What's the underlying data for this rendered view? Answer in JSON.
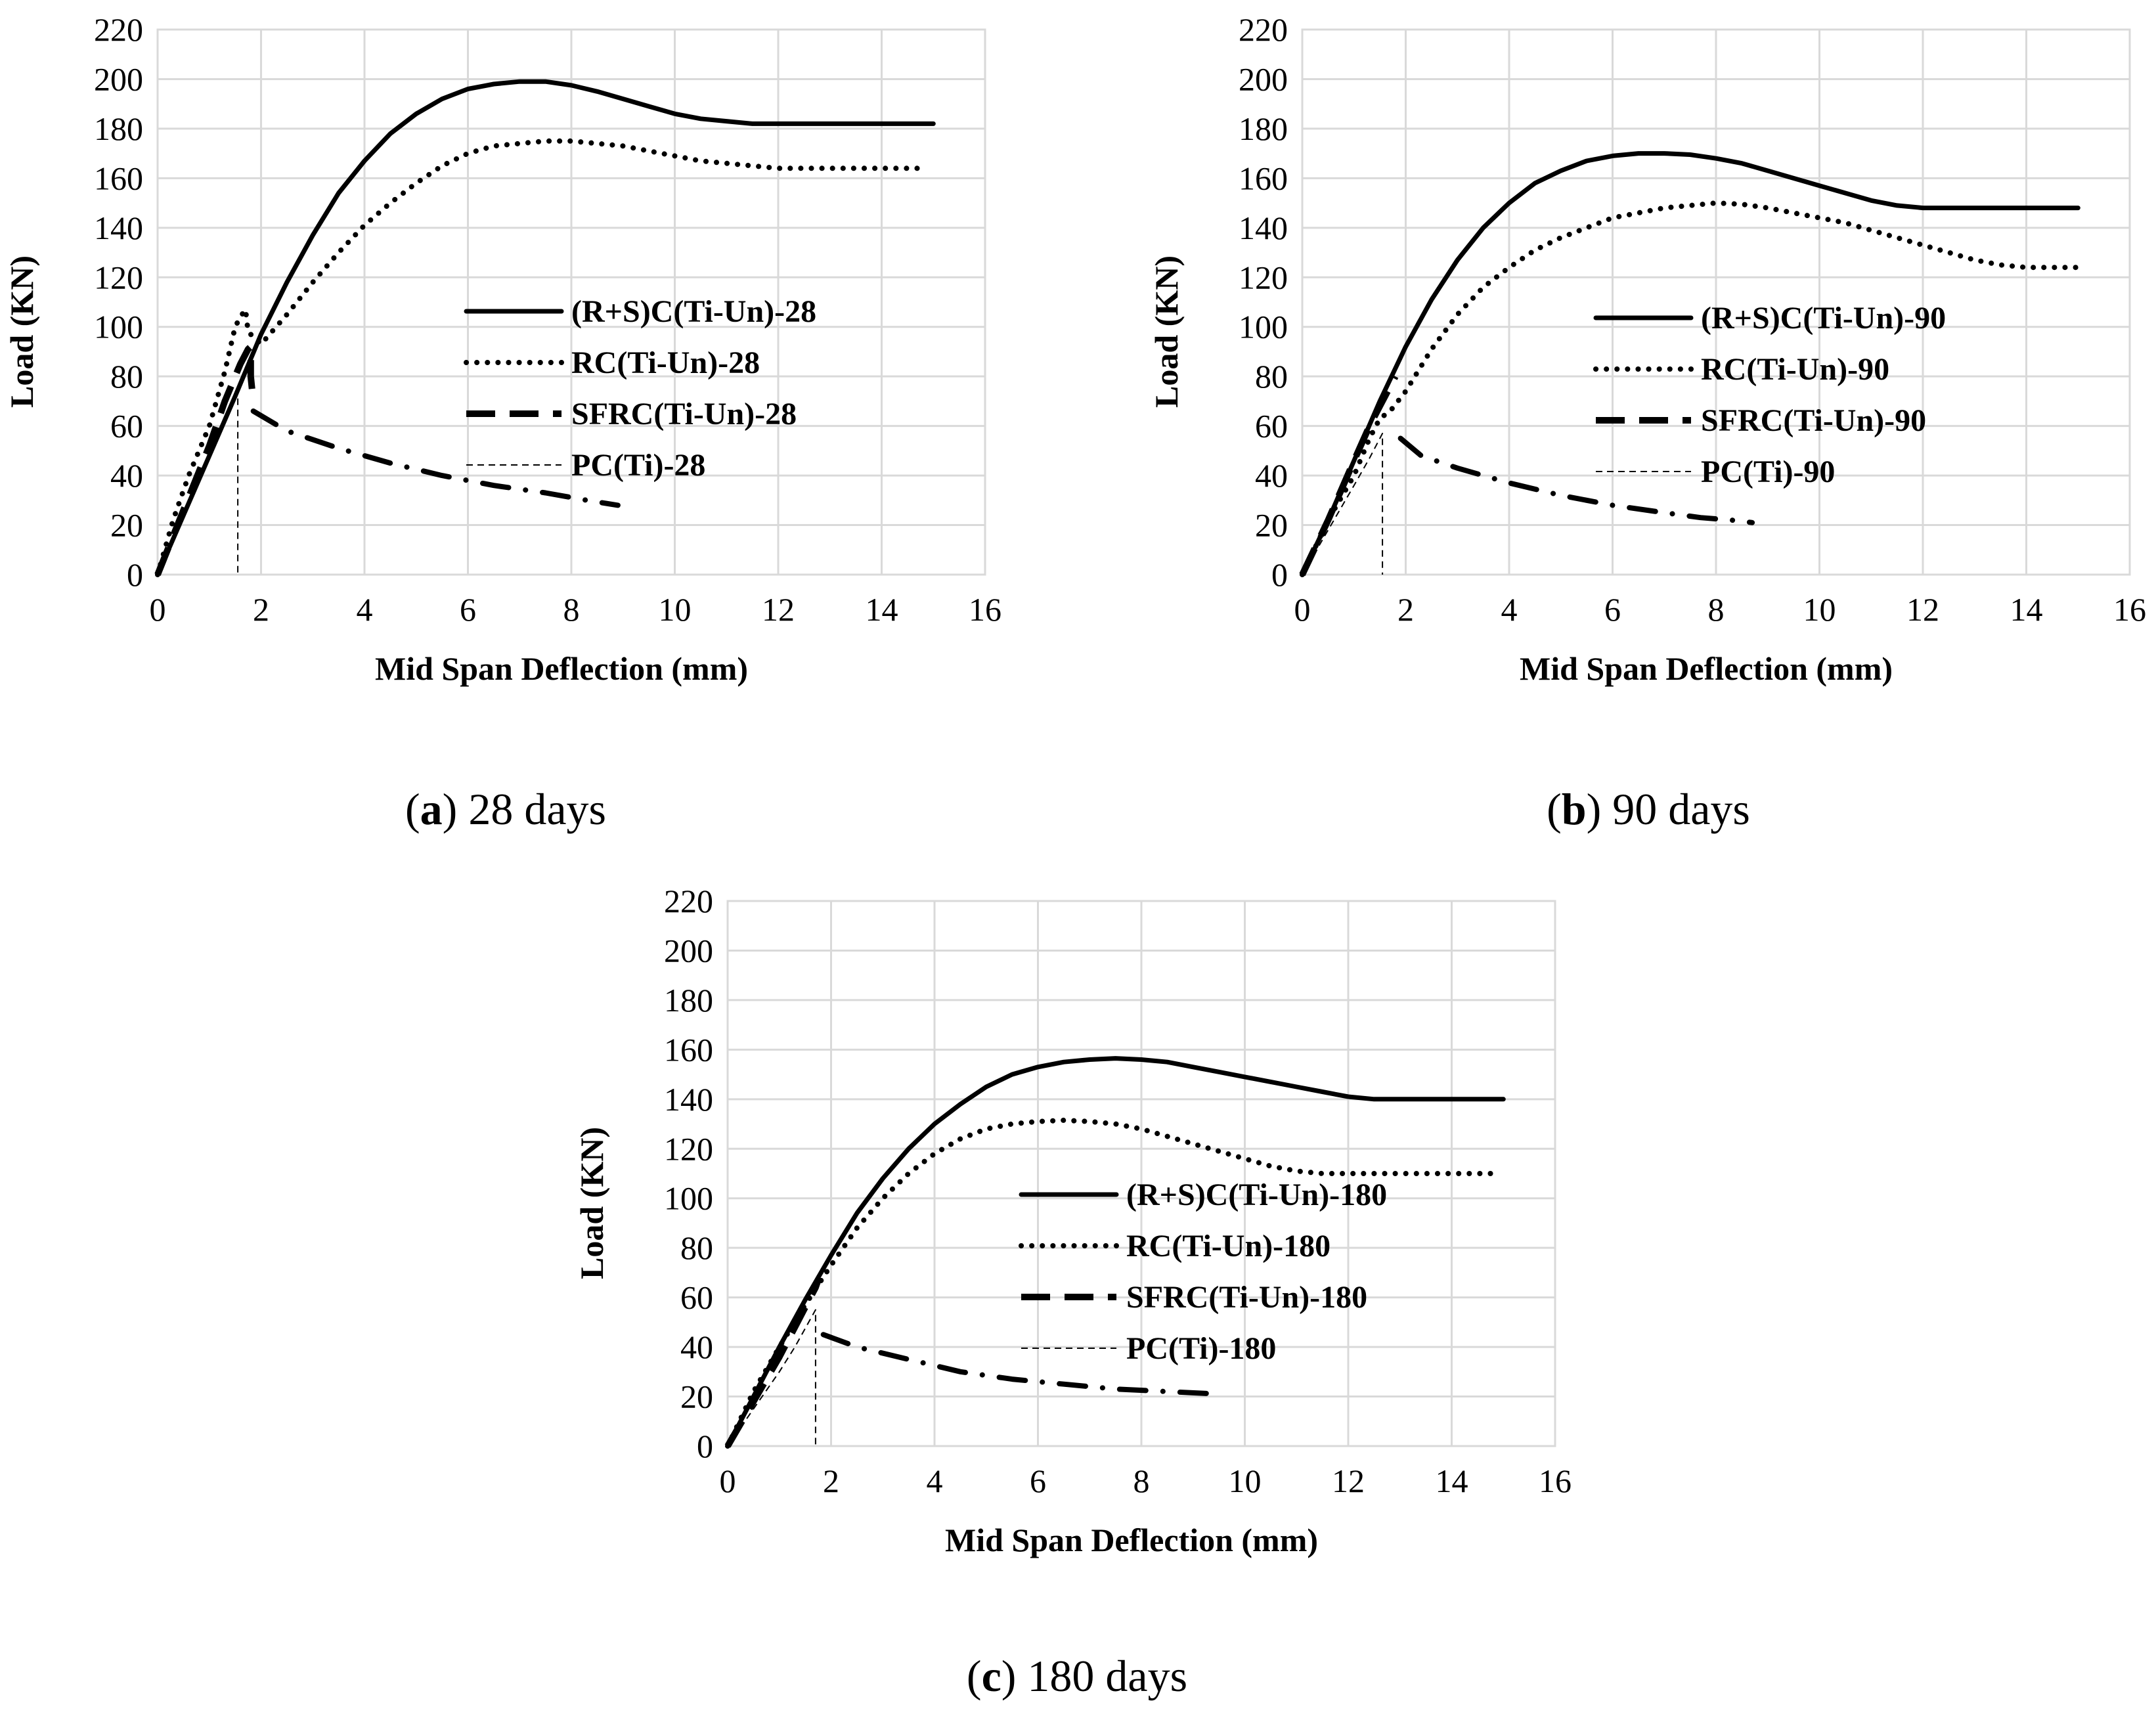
{
  "chart_data": [
    {
      "type": "line",
      "panel": "a",
      "caption_letter": "a",
      "caption_text": " 28 days",
      "xlabel": "Mid Span Deflection (mm)",
      "ylabel": "Load (KN)",
      "xlim": [
        0,
        16
      ],
      "ylim": [
        0,
        220
      ],
      "xticks": [
        0,
        2,
        4,
        6,
        8,
        10,
        12,
        14,
        16
      ],
      "yticks": [
        0,
        20,
        40,
        60,
        80,
        100,
        120,
        140,
        160,
        180,
        200,
        220
      ],
      "grid": true,
      "legend_position": "center-right",
      "series": [
        {
          "name": "(R+S)C(Ti-Un)-28",
          "style": "solid",
          "x": [
            0,
            0.5,
            1,
            1.5,
            2,
            2.5,
            3,
            3.5,
            4,
            4.5,
            5,
            5.5,
            6,
            6.5,
            7,
            7.5,
            8,
            8.5,
            9,
            9.5,
            10,
            10.5,
            11,
            11.5,
            12,
            12.5,
            13,
            13.5,
            14,
            14.5,
            15
          ],
          "y": [
            0,
            24,
            48,
            72,
            97,
            118,
            137,
            154,
            167,
            178,
            186,
            192,
            196,
            198,
            199,
            199,
            197.5,
            195,
            192,
            189,
            186,
            184,
            183,
            182,
            182,
            182,
            182,
            182,
            182,
            182,
            182
          ]
        },
        {
          "name": "RC(Ti-Un)-28",
          "style": "dotted",
          "x": [
            0,
            0.3,
            0.6,
            1,
            1.3,
            1.5,
            1.6,
            1.7,
            1.75,
            2,
            2.5,
            3,
            3.5,
            4,
            4.5,
            5,
            5.5,
            6,
            6.5,
            7,
            7.5,
            8,
            8.5,
            9,
            9.5,
            10,
            10.5,
            11,
            11.5,
            12,
            12.5,
            13,
            13.5,
            14,
            14.5,
            14.8
          ],
          "y": [
            0,
            22,
            40,
            60,
            82,
            100,
            104,
            107,
            98,
            93,
            105,
            118,
            130,
            141,
            150,
            158,
            165,
            170,
            173,
            174,
            175,
            175,
            174,
            173,
            171,
            169,
            167,
            166,
            165,
            164,
            164,
            164,
            164,
            164,
            164,
            164
          ]
        },
        {
          "name": "SFRC(Ti-Un)-28",
          "style": "dashed",
          "x": [
            0,
            0.5,
            1,
            1.3,
            1.5,
            1.6,
            1.7,
            1.75,
            1.8,
            1.8,
            1.85
          ],
          "y": [
            0,
            26,
            52,
            70,
            80,
            85,
            89,
            91,
            92,
            80,
            70
          ]
        },
        {
          "name": "PC(Ti)-28",
          "style": "thin-dashed",
          "x": [
            0,
            0.5,
            1,
            1.3,
            1.55,
            1.55
          ],
          "y": [
            0,
            24,
            48,
            62,
            75,
            0
          ]
        },
        {
          "name": "",
          "style": "dash-dot",
          "x": [
            1.85,
            2.5,
            3.5,
            4.5,
            5.5,
            6.5,
            7.5,
            8.3,
            8.9
          ],
          "y": [
            66,
            58,
            51,
            45,
            40,
            36,
            33,
            30,
            28
          ]
        }
      ]
    },
    {
      "type": "line",
      "panel": "b",
      "caption_letter": "b",
      "caption_text": " 90 days",
      "xlabel": "Mid Span Deflection (mm)",
      "ylabel": "Load (KN)",
      "xlim": [
        0,
        16
      ],
      "ylim": [
        0,
        220
      ],
      "xticks": [
        0,
        2,
        4,
        6,
        8,
        10,
        12,
        14,
        16
      ],
      "yticks": [
        0,
        20,
        40,
        60,
        80,
        100,
        120,
        140,
        160,
        180,
        200,
        220
      ],
      "grid": true,
      "legend_position": "center-right",
      "series": [
        {
          "name": "(R+S)C(Ti-Un)-90",
          "style": "solid",
          "x": [
            0,
            0.5,
            1,
            1.5,
            2,
            2.5,
            3,
            3.5,
            4,
            4.5,
            5,
            5.5,
            6,
            6.5,
            7,
            7.5,
            8,
            8.5,
            9,
            9.5,
            10,
            10.5,
            11,
            11.5,
            12,
            12.5,
            13,
            13.5,
            14,
            14.5,
            15
          ],
          "y": [
            0,
            22,
            46,
            70,
            92,
            111,
            127,
            140,
            150,
            158,
            163,
            167,
            169,
            170,
            170,
            169.5,
            168,
            166,
            163,
            160,
            157,
            154,
            151,
            149,
            148,
            148,
            148,
            148,
            148,
            148,
            148
          ]
        },
        {
          "name": "RC(Ti-Un)-90",
          "style": "dotted",
          "x": [
            0,
            0.5,
            1,
            1.3,
            1.5,
            1.7,
            2,
            2.5,
            3,
            3.5,
            4,
            4.5,
            5,
            5.5,
            6,
            6.5,
            7,
            7.5,
            8,
            8.5,
            9,
            9.5,
            10,
            10.5,
            11,
            11.5,
            12,
            12.5,
            13,
            13.5,
            14,
            14.5,
            15
          ],
          "y": [
            0,
            22,
            40,
            55,
            63,
            66,
            74,
            91,
            105,
            116,
            124,
            131,
            136,
            140,
            144,
            146,
            148,
            149,
            150,
            149.5,
            148,
            146,
            144,
            142,
            139,
            136,
            133,
            130,
            127,
            125,
            124,
            124,
            124
          ]
        },
        {
          "name": "SFRC(Ti-Un)-90",
          "style": "dashed",
          "x": [
            0,
            0.5,
            1,
            1.3,
            1.5,
            1.6,
            1.7,
            1.8
          ],
          "y": [
            0,
            22,
            46,
            60,
            68,
            72,
            76,
            80
          ]
        },
        {
          "name": "PC(Ti)-90",
          "style": "thin-dashed",
          "x": [
            0,
            0.5,
            1,
            1.3,
            1.55,
            1.55
          ],
          "y": [
            0,
            18,
            36,
            47,
            57,
            0
          ]
        },
        {
          "name": "",
          "style": "dash-dot",
          "x": [
            1.9,
            2.3,
            3,
            4,
            5,
            6,
            7,
            7.7,
            8.3,
            8.7
          ],
          "y": [
            55,
            48,
            43,
            37,
            32,
            28,
            25,
            23,
            22,
            21
          ]
        }
      ]
    },
    {
      "type": "line",
      "panel": "c",
      "caption_letter": "c",
      "caption_text": " 180 days",
      "xlabel": "Mid Span Deflection (mm)",
      "ylabel": "Load (KN)",
      "xlim": [
        0,
        16
      ],
      "ylim": [
        0,
        220
      ],
      "xticks": [
        0,
        2,
        4,
        6,
        8,
        10,
        12,
        14,
        16
      ],
      "yticks": [
        0,
        20,
        40,
        60,
        80,
        100,
        120,
        140,
        160,
        180,
        200,
        220
      ],
      "grid": true,
      "legend_position": "center-right",
      "series": [
        {
          "name": "(R+S)C(Ti-Un)-180",
          "style": "solid",
          "x": [
            0,
            0.5,
            1,
            1.5,
            2,
            2.5,
            3,
            3.5,
            4,
            4.5,
            5,
            5.5,
            6,
            6.5,
            7,
            7.5,
            8,
            8.5,
            9,
            9.5,
            10,
            10.5,
            11,
            11.5,
            12,
            12.5,
            13,
            13.5,
            14,
            14.5,
            15
          ],
          "y": [
            0,
            20,
            40,
            59,
            77,
            94,
            108,
            120,
            130,
            138,
            145,
            150,
            153,
            155,
            156,
            156.5,
            156,
            155,
            153,
            151,
            149,
            147,
            145,
            143,
            141,
            140,
            140,
            140,
            140,
            140,
            140
          ]
        },
        {
          "name": "RC(Ti-Un)-180",
          "style": "dotted",
          "x": [
            0,
            0.5,
            1,
            1.5,
            2,
            2.5,
            3,
            3.5,
            4,
            4.5,
            5,
            5.5,
            6,
            6.5,
            7,
            7.5,
            8,
            8.5,
            9,
            9.5,
            10,
            10.5,
            11,
            11.5,
            12,
            12.5,
            13,
            13.5,
            14,
            14.5,
            14.8
          ],
          "y": [
            0,
            22,
            40,
            57,
            73,
            88,
            100,
            110,
            118,
            124,
            128,
            130,
            131,
            131.5,
            131,
            130,
            128,
            125,
            122,
            119,
            116,
            113,
            111,
            110,
            110,
            110,
            110,
            110,
            110,
            110,
            110
          ]
        },
        {
          "name": "SFRC(Ti-Un)-180",
          "style": "dashed",
          "x": [
            0,
            0.5,
            1,
            1.3,
            1.5,
            1.6,
            1.7,
            1.75
          ],
          "y": [
            0,
            18,
            36,
            48,
            56,
            60,
            64,
            67
          ]
        },
        {
          "name": "PC(Ti)-180",
          "style": "thin-dashed",
          "x": [
            0,
            0.5,
            1,
            1.3,
            1.7,
            1.7
          ],
          "y": [
            0,
            15,
            30,
            40,
            55,
            0
          ]
        },
        {
          "name": "",
          "style": "dash-dot",
          "x": [
            1.85,
            2.5,
            3.5,
            4.5,
            5.5,
            6.5,
            7.5,
            8.5,
            9.5
          ],
          "y": [
            45,
            40,
            35,
            30,
            27,
            25,
            23,
            22,
            21
          ]
        }
      ]
    }
  ]
}
